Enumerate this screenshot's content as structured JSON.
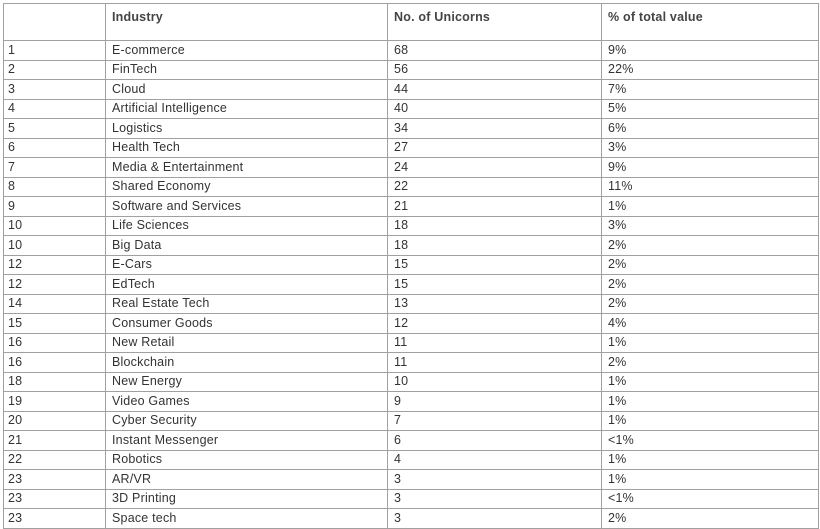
{
  "table": {
    "headers": [
      "Industry",
      "No.  of Unicorns",
      "%  of total value"
    ],
    "rows": [
      [
        1,
        "E-commerce",
        68,
        "9%"
      ],
      [
        2,
        "FinTech",
        56,
        "22%"
      ],
      [
        3,
        "Cloud",
        44,
        "7%"
      ],
      [
        4,
        "Artificial Intelligence",
        40,
        "5%"
      ],
      [
        5,
        "Logistics",
        34,
        "6%"
      ],
      [
        6,
        "Health Tech",
        27,
        "3%"
      ],
      [
        7,
        "Media & Entertainment",
        24,
        "9%"
      ],
      [
        8,
        "Shared Economy",
        22,
        "11%"
      ],
      [
        9,
        "Software and Services",
        21,
        "1%"
      ],
      [
        10,
        "Life Sciences",
        18,
        "3%"
      ],
      [
        10,
        "Big Data",
        18,
        "2%"
      ],
      [
        12,
        "E-Cars",
        15,
        "2%"
      ],
      [
        12,
        "EdTech",
        15,
        "2%"
      ],
      [
        14,
        "Real Estate Tech",
        13,
        "2%"
      ],
      [
        15,
        "Consumer Goods",
        12,
        "4%"
      ],
      [
        16,
        "New Retail",
        11,
        "1%"
      ],
      [
        16,
        "Blockchain",
        11,
        "2%"
      ],
      [
        18,
        "New Energy",
        10,
        "1%"
      ],
      [
        19,
        "Video Games",
        9,
        "1%"
      ],
      [
        20,
        "Cyber Security",
        7,
        "1%"
      ],
      [
        21,
        "Instant Messenger",
        6,
        "<1%"
      ],
      [
        22,
        "Robotics",
        4,
        "1%"
      ],
      [
        23,
        "AR/VR",
        3,
        "1%"
      ],
      [
        23,
        "3D Printing",
        3,
        "<1%"
      ],
      [
        23,
        "Space tech",
        3,
        "2%"
      ]
    ]
  }
}
